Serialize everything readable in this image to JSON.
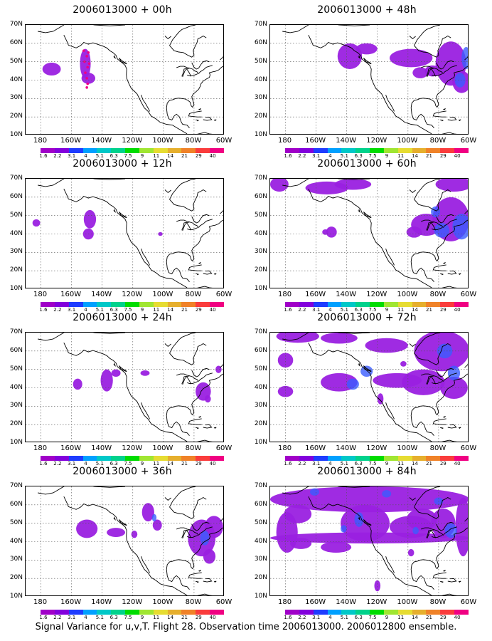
{
  "figure": {
    "caption": "Signal Variance for u,v,T. Flight 28. Observation time 2006013000. 2006012800 ensemble.",
    "lat_labels": [
      "70N",
      "60N",
      "50N",
      "40N",
      "30N",
      "20N",
      "10N"
    ],
    "lon_labels": [
      "180",
      "160W",
      "140W",
      "120W",
      "100W",
      "80W",
      "60W"
    ],
    "colorbar": {
      "labels": [
        "1.6",
        "2.2",
        "3.1",
        "4",
        "5.1",
        "6.3",
        "7.5",
        "9",
        "11",
        "14",
        "21",
        "29",
        "40"
      ],
      "colors": [
        "#a000c8",
        "#8200dc",
        "#1e3cff",
        "#00a0ff",
        "#00c8c8",
        "#00d28c",
        "#00dc00",
        "#a0e632",
        "#e6dc32",
        "#e6af2d",
        "#f08228",
        "#fa3c3c",
        "#f00082"
      ]
    },
    "shade_color": "#9a20e0",
    "high_color": "#3a5cff",
    "peak_color": "#f00082",
    "panels": [
      {
        "title": "2006013000 + 00h"
      },
      {
        "title": "2006013000 + 48h"
      },
      {
        "title": "2006013000 + 12h"
      },
      {
        "title": "2006013000 + 60h"
      },
      {
        "title": "2006013000 + 24h"
      },
      {
        "title": "2006013000 + 72h"
      },
      {
        "title": "2006013000 + 36h"
      },
      {
        "title": "2006013000 + 84h"
      }
    ]
  }
}
